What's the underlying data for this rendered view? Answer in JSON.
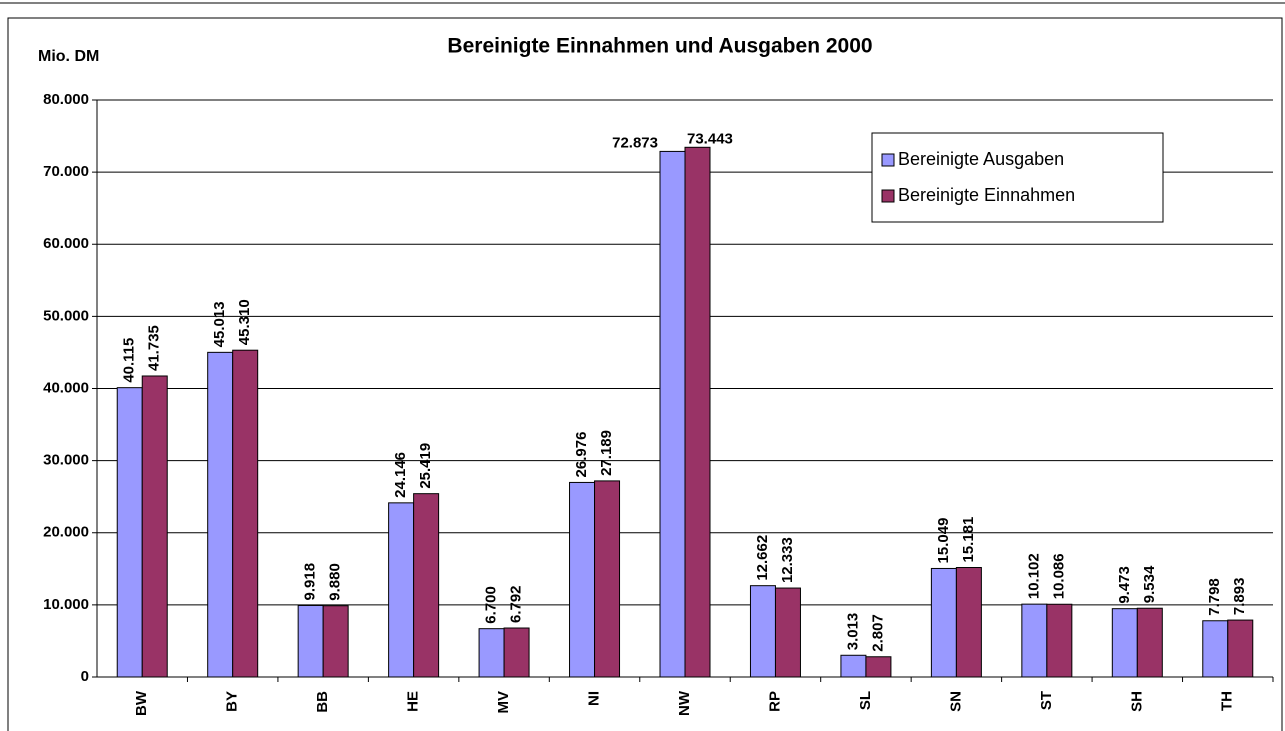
{
  "chart_data": {
    "type": "bar",
    "title": "Bereinigte Einnahmen und Ausgaben 2000",
    "y_label": "Mio. DM",
    "categories": [
      "BW",
      "BY",
      "BB",
      "HE",
      "MV",
      "NI",
      "NW",
      "RP",
      "SL",
      "SN",
      "ST",
      "SH",
      "TH"
    ],
    "series": [
      {
        "name": "Bereinigte Ausgaben",
        "color": "#9999ff",
        "values": [
          40115,
          45013,
          9918,
          24146,
          6700,
          26976,
          72873,
          12662,
          3013,
          15049,
          10102,
          9473,
          7798
        ],
        "value_labels": [
          "40.115",
          "45.013",
          "9.918",
          "24.146",
          "6.700",
          "26.976",
          "72.873",
          "12.662",
          "3.013",
          "15.049",
          "10.102",
          "9.473",
          "7.798"
        ]
      },
      {
        "name": "Bereinigte Einnahmen",
        "color": "#993366",
        "values": [
          41735,
          45310,
          9880,
          25419,
          6792,
          27189,
          73443,
          12333,
          2807,
          15181,
          10086,
          9534,
          7893
        ],
        "value_labels": [
          "41.735",
          "45.310",
          "9.880",
          "25.419",
          "6.792",
          "27.189",
          "73.443",
          "12.333",
          "2.807",
          "15.181",
          "10.086",
          "9.534",
          "7.893"
        ]
      }
    ],
    "ylim": [
      0,
      80000
    ],
    "yticks": [
      0,
      {
        "value": 10000,
        "label": "10.000"
      },
      {
        "value": 20000,
        "label": "20.000"
      },
      {
        "value": 30000,
        "label": "30.000"
      },
      {
        "value": 40000,
        "label": "40.000"
      },
      {
        "value": 50000,
        "label": "50.000"
      },
      {
        "value": 60000,
        "label": "60.000"
      },
      {
        "value": 70000,
        "label": "70.000"
      },
      {
        "value": 80000,
        "label": "80.000"
      }
    ],
    "grid": true,
    "legend": "upper right"
  }
}
